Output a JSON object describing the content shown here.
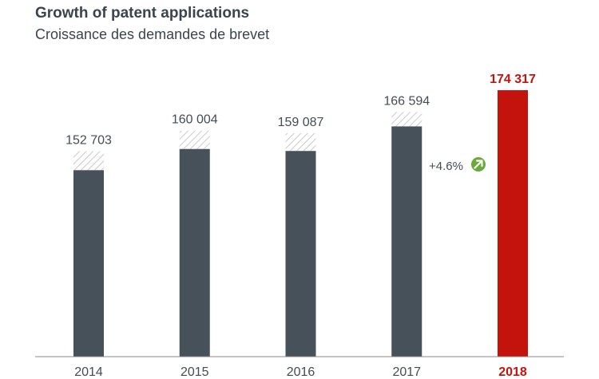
{
  "chart_data": {
    "type": "bar",
    "title": "Growth of patent applications",
    "subtitle": "Croissance des demandes de brevet",
    "truncated_heading": "g",
    "categories": [
      "2014",
      "2015",
      "2016",
      "2017",
      "2018"
    ],
    "series": [
      {
        "values": [
          152703,
          160004,
          159087,
          166594,
          174317
        ],
        "value_labels": [
          "152 703",
          "160 004",
          "159 087",
          "166 594",
          "174 317"
        ]
      }
    ],
    "solid_portion_estimate": [
      146000,
      153500,
      152800,
      161500,
      174317
    ],
    "highlight_index": 4,
    "annotation": {
      "text": "+4.6%",
      "icon": "arrow-up-right-icon"
    },
    "ylim": [
      80000,
      178000
    ],
    "grid": false,
    "colors": {
      "bar": "#465159",
      "highlight": "#c4120c",
      "hatch": "#c9c9c9",
      "growth_icon": "#6aaa3a",
      "text": "#444c55",
      "axis": "#8a8a8a"
    }
  }
}
